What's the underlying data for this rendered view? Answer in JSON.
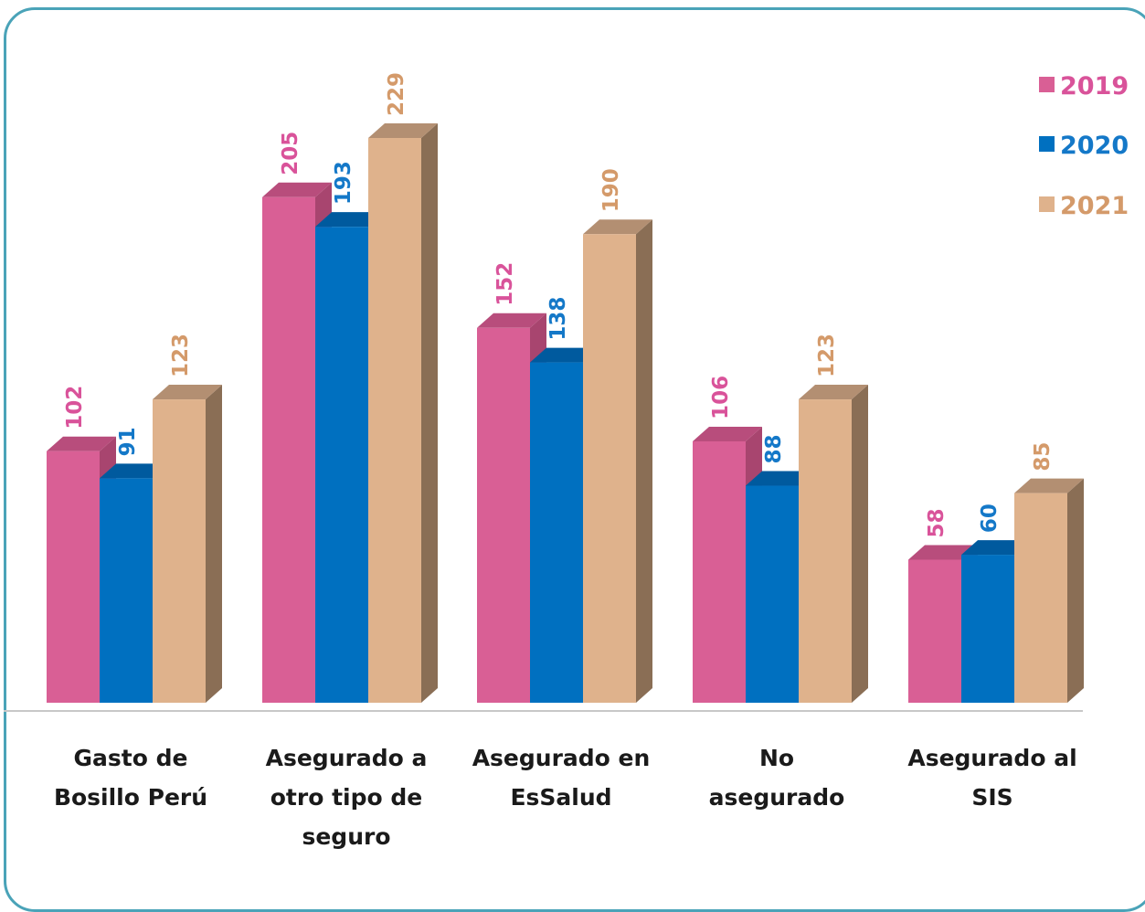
{
  "chart_data": {
    "type": "bar",
    "style": "3d-clustered-column",
    "title": "",
    "xlabel": "",
    "ylabel": "",
    "ylim": [
      0,
      250
    ],
    "grid": false,
    "legend_position": "top-right",
    "categories": [
      [
        "Gasto de",
        "Bosillo Perú"
      ],
      [
        "Asegurado a",
        "otro tipo de",
        "seguro"
      ],
      [
        "Asegurado en",
        "EsSalud"
      ],
      [
        "No",
        "asegurado"
      ],
      [
        "Asegurado al",
        "SIS"
      ]
    ],
    "series": [
      {
        "name": "2019",
        "color": "#d95f95",
        "side": "#a8456f",
        "top": "#b84d7c",
        "label_color": "#d9539a",
        "values": [
          102,
          205,
          152,
          106,
          58
        ]
      },
      {
        "name": "2020",
        "color": "#0070c0",
        "side": "#004f8a",
        "top": "#005a9e",
        "label_color": "#1478c8",
        "values": [
          91,
          193,
          138,
          88,
          60
        ]
      },
      {
        "name": "2021",
        "color": "#dfb28c",
        "side": "#8a6e55",
        "top": "#b38f72",
        "label_color": "#d49a6a",
        "values": [
          123,
          229,
          190,
          123,
          85
        ]
      }
    ]
  }
}
